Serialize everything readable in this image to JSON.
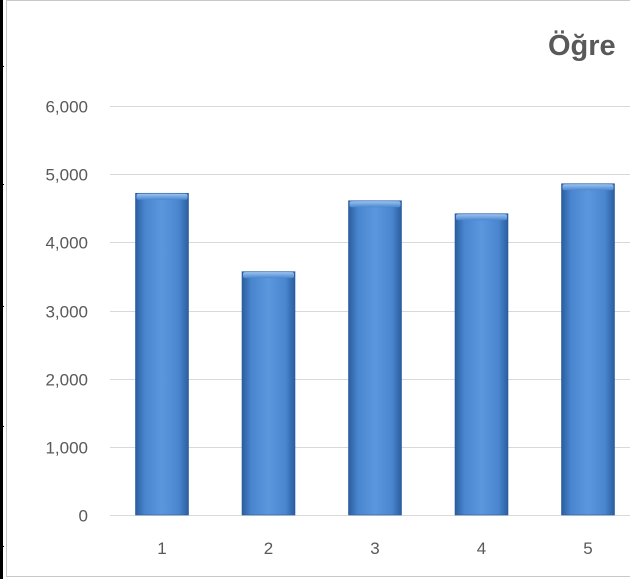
{
  "chart_data": {
    "type": "bar",
    "title": "Öğre",
    "categories": [
      "1",
      "2",
      "3",
      "4",
      "5"
    ],
    "values": [
      4720,
      3570,
      4610,
      4420,
      4860
    ],
    "ylim": [
      0,
      6000
    ],
    "yticks": [
      "0",
      "1,000",
      "2,000",
      "3,000",
      "4,000",
      "5,000",
      "6,000"
    ],
    "ytick_values": [
      0,
      1000,
      2000,
      3000,
      4000,
      5000,
      6000
    ],
    "grid": true,
    "colors": {
      "bar": "#3f78c0",
      "bar_light": "#5a97dd",
      "bar_dark": "#2a5d9f",
      "grid": "#d9d9d9",
      "text": "#595959"
    }
  }
}
